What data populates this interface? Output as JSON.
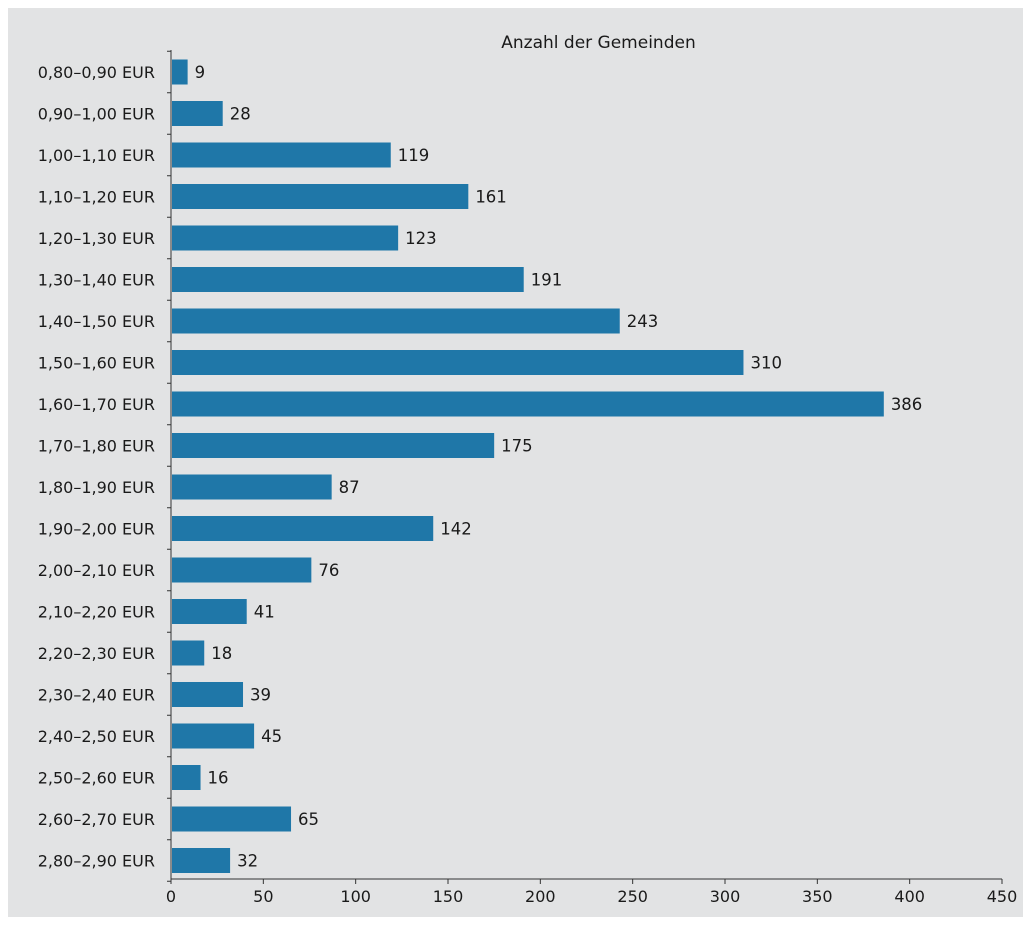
{
  "chart_data": {
    "type": "bar",
    "orientation": "horizontal",
    "title": "Anzahl der Gemeinden",
    "categories": [
      "0,80–0,90 EUR",
      "0,90–1,00 EUR",
      "1,00–1,10 EUR",
      "1,10–1,20 EUR",
      "1,20–1,30 EUR",
      "1,30–1,40 EUR",
      "1,40–1,50 EUR",
      "1,50–1,60 EUR",
      "1,60–1,70 EUR",
      "1,70–1,80 EUR",
      "1,80–1,90 EUR",
      "1,90–2,00 EUR",
      "2,00–2,10 EUR",
      "2,10–2,20 EUR",
      "2,20–2,30 EUR",
      "2,30–2,40 EUR",
      "2,40–2,50 EUR",
      "2,50–2,60 EUR",
      "2,60–2,70 EUR",
      "2,80–2,90 EUR"
    ],
    "values": [
      9,
      28,
      119,
      161,
      123,
      191,
      243,
      310,
      386,
      175,
      87,
      142,
      76,
      41,
      18,
      39,
      45,
      16,
      65,
      32
    ],
    "value_labels": [
      "9",
      "28",
      "119",
      "161",
      "123",
      "191",
      "243",
      "310",
      "386",
      "175",
      "87",
      "142",
      "76",
      "41",
      "18",
      "39",
      "45",
      "16",
      "65",
      "32"
    ],
    "xlim": [
      0,
      450
    ],
    "xticks": [
      0,
      50,
      100,
      150,
      200,
      250,
      300,
      350,
      400,
      450
    ],
    "xtick_labels": [
      "0",
      "50",
      "100",
      "150",
      "200",
      "250",
      "300",
      "350",
      "400",
      "450"
    ],
    "grid": false,
    "legend": "none",
    "colors": {
      "bar": "#1f77a8",
      "background": "#e2e3e4",
      "axis": "#333333"
    }
  }
}
